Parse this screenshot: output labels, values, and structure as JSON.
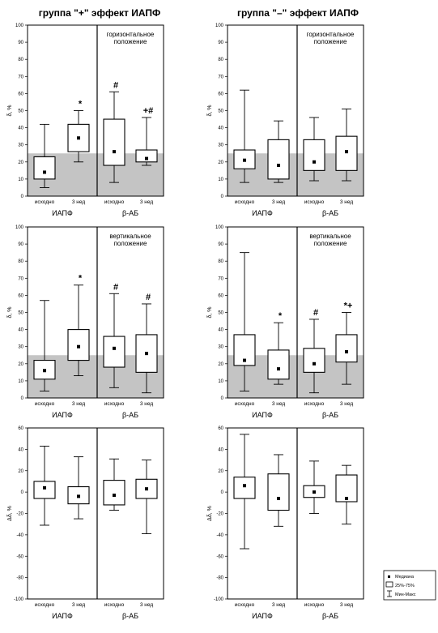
{
  "titles": {
    "left": "группа \"+\" эффект ИАПФ",
    "right": "группа \"–\" эффект ИАПФ"
  },
  "legend": {
    "median": "Медиана",
    "iqr": "25%-75%",
    "range": "Мин-Макс"
  },
  "chart_data": [
    {
      "type": "box",
      "row": 0,
      "col": 0,
      "ylabel": "δ, %",
      "ylim": [
        0,
        100
      ],
      "yticks": [
        0,
        10,
        20,
        30,
        40,
        50,
        60,
        70,
        80,
        90,
        100
      ],
      "shade_below": 25,
      "annotation": [
        "горизонтальное",
        "положение"
      ],
      "groups": [
        "ИАПФ",
        "β-АБ"
      ],
      "categories": [
        "исходно",
        "3 нед",
        "исходно",
        "3 нед"
      ],
      "boxes": [
        {
          "min": 5,
          "q1": 10,
          "median": 14,
          "q3": 23,
          "max": 42,
          "mark": ""
        },
        {
          "min": 20,
          "q1": 26,
          "median": 34,
          "q3": 42,
          "max": 50,
          "mark": "*"
        },
        {
          "min": 8,
          "q1": 18,
          "median": 26,
          "q3": 45,
          "max": 61,
          "mark": "#"
        },
        {
          "min": 18,
          "q1": 20,
          "median": 22,
          "q3": 27,
          "max": 46,
          "mark": "+#"
        }
      ]
    },
    {
      "type": "box",
      "row": 0,
      "col": 1,
      "ylabel": "δ, %",
      "ylim": [
        0,
        100
      ],
      "yticks": [
        0,
        10,
        20,
        30,
        40,
        50,
        60,
        70,
        80,
        90,
        100
      ],
      "shade_below": 25,
      "annotation": [
        "горизонтальное",
        "положение"
      ],
      "groups": [
        "ИАПФ",
        "β-АБ"
      ],
      "categories": [
        "исходно",
        "3 нед",
        "исходно",
        "3 нед"
      ],
      "boxes": [
        {
          "min": 8,
          "q1": 16,
          "median": 21,
          "q3": 27,
          "max": 62,
          "mark": ""
        },
        {
          "min": 8,
          "q1": 10,
          "median": 18,
          "q3": 33,
          "max": 44,
          "mark": ""
        },
        {
          "min": 9,
          "q1": 15,
          "median": 20,
          "q3": 33,
          "max": 46,
          "mark": ""
        },
        {
          "min": 9,
          "q1": 15,
          "median": 26,
          "q3": 35,
          "max": 51,
          "mark": ""
        }
      ]
    },
    {
      "type": "box",
      "row": 1,
      "col": 0,
      "ylabel": "δ, %",
      "ylim": [
        0,
        100
      ],
      "yticks": [
        0,
        10,
        20,
        30,
        40,
        50,
        60,
        70,
        80,
        90,
        100
      ],
      "shade_below": 25,
      "annotation": [
        "вертикальное",
        "положение"
      ],
      "groups": [
        "ИАПФ",
        "β-АБ"
      ],
      "categories": [
        "исходно",
        "3 нед",
        "исходно",
        "3 нед"
      ],
      "boxes": [
        {
          "min": 4,
          "q1": 11,
          "median": 16,
          "q3": 22,
          "max": 57,
          "mark": ""
        },
        {
          "min": 13,
          "q1": 22,
          "median": 30,
          "q3": 40,
          "max": 66,
          "mark": "*"
        },
        {
          "min": 6,
          "q1": 18,
          "median": 29,
          "q3": 36,
          "max": 61,
          "mark": "#"
        },
        {
          "min": 3,
          "q1": 15,
          "median": 26,
          "q3": 37,
          "max": 55,
          "mark": "#"
        }
      ]
    },
    {
      "type": "box",
      "row": 1,
      "col": 1,
      "ylabel": "δ, %",
      "ylim": [
        0,
        100
      ],
      "yticks": [
        0,
        10,
        20,
        30,
        40,
        50,
        60,
        70,
        80,
        90,
        100
      ],
      "shade_below": 25,
      "annotation": [
        "вертикальное",
        "положение"
      ],
      "groups": [
        "ИАПФ",
        "β-АБ"
      ],
      "categories": [
        "исходно",
        "3 нед",
        "исходно",
        "3 нед"
      ],
      "boxes": [
        {
          "min": 4,
          "q1": 19,
          "median": 22,
          "q3": 37,
          "max": 85,
          "mark": ""
        },
        {
          "min": 8,
          "q1": 11,
          "median": 17,
          "q3": 28,
          "max": 44,
          "mark": "*"
        },
        {
          "min": 3,
          "q1": 15,
          "median": 20,
          "q3": 29,
          "max": 46,
          "mark": "#"
        },
        {
          "min": 8,
          "q1": 21,
          "median": 27,
          "q3": 37,
          "max": 50,
          "mark": "*+"
        }
      ]
    },
    {
      "type": "box",
      "row": 2,
      "col": 0,
      "ylabel": "Δδ, %",
      "ylim": [
        -100,
        60
      ],
      "yticks": [
        -100,
        -80,
        -60,
        -40,
        -20,
        0,
        20,
        40,
        60
      ],
      "groups": [
        "ИАПФ",
        "β-АБ"
      ],
      "categories": [
        "исходно",
        "3 нед",
        "исходно",
        "3 нед"
      ],
      "boxes": [
        {
          "min": -31,
          "q1": -6,
          "median": 4,
          "q3": 10,
          "max": 43,
          "mark": ""
        },
        {
          "min": -25,
          "q1": -11,
          "median": -4,
          "q3": 5,
          "max": 33,
          "mark": ""
        },
        {
          "min": -17,
          "q1": -12,
          "median": -3,
          "q3": 11,
          "max": 31,
          "mark": ""
        },
        {
          "min": -39,
          "q1": -6,
          "median": 3,
          "q3": 12,
          "max": 30,
          "mark": ""
        }
      ]
    },
    {
      "type": "box",
      "row": 2,
      "col": 1,
      "ylabel": "Δδ, %",
      "ylim": [
        -100,
        60
      ],
      "yticks": [
        -100,
        -80,
        -60,
        -40,
        -20,
        0,
        20,
        40,
        60
      ],
      "groups": [
        "ИАПФ",
        "β-АБ"
      ],
      "categories": [
        "исходно",
        "3 нед",
        "исходно",
        "3 нед"
      ],
      "boxes": [
        {
          "min": -53,
          "q1": -6,
          "median": 6,
          "q3": 14,
          "max": 54,
          "mark": ""
        },
        {
          "min": -32,
          "q1": -17,
          "median": -6,
          "q3": 17,
          "max": 35,
          "mark": ""
        },
        {
          "min": -20,
          "q1": -5,
          "median": 0,
          "q3": 6,
          "max": 29,
          "mark": ""
        },
        {
          "min": -30,
          "q1": -9,
          "median": -6,
          "q3": 16,
          "max": 25,
          "mark": ""
        }
      ]
    }
  ]
}
